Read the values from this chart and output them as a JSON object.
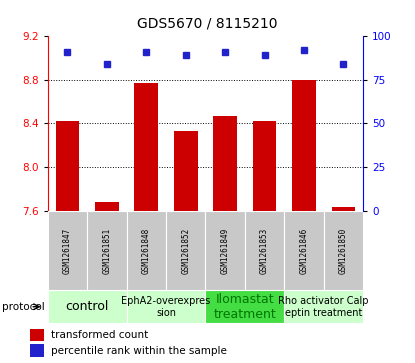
{
  "title": "GDS5670 / 8115210",
  "samples": [
    "GSM1261847",
    "GSM1261851",
    "GSM1261848",
    "GSM1261852",
    "GSM1261849",
    "GSM1261853",
    "GSM1261846",
    "GSM1261850"
  ],
  "bar_values": [
    8.42,
    7.68,
    8.77,
    8.33,
    8.47,
    8.42,
    8.8,
    7.63
  ],
  "percentile_values": [
    91,
    84,
    91,
    89,
    91,
    89,
    92,
    84
  ],
  "ylim_left": [
    7.6,
    9.2
  ],
  "ylim_right": [
    0,
    100
  ],
  "yticks_left": [
    7.6,
    8.0,
    8.4,
    8.8,
    9.2
  ],
  "yticks_right": [
    0,
    25,
    50,
    75,
    100
  ],
  "grid_lines": [
    8.0,
    8.4,
    8.8
  ],
  "bar_color": "#cc0000",
  "dot_color": "#2222cc",
  "bar_bottom": 7.6,
  "protocols": [
    {
      "label": "control",
      "start": 0,
      "end": 2,
      "color": "#ccffcc",
      "fontsize": 9,
      "fontcolor": "#000000"
    },
    {
      "label": "EphA2-overexpres\nsion",
      "start": 2,
      "end": 4,
      "color": "#ccffcc",
      "fontsize": 7,
      "fontcolor": "#000000"
    },
    {
      "label": "Ilomastat\ntreatment",
      "start": 4,
      "end": 6,
      "color": "#44dd44",
      "fontsize": 9,
      "fontcolor": "#007700"
    },
    {
      "label": "Rho activator Calp\neptin treatment",
      "start": 6,
      "end": 8,
      "color": "#ccffcc",
      "fontsize": 7,
      "fontcolor": "#000000"
    }
  ],
  "legend_bar_label": "transformed count",
  "legend_dot_label": "percentile rank within the sample",
  "background_gray": "#c8c8c8",
  "bar_width": 0.6,
  "title_fontsize": 10
}
